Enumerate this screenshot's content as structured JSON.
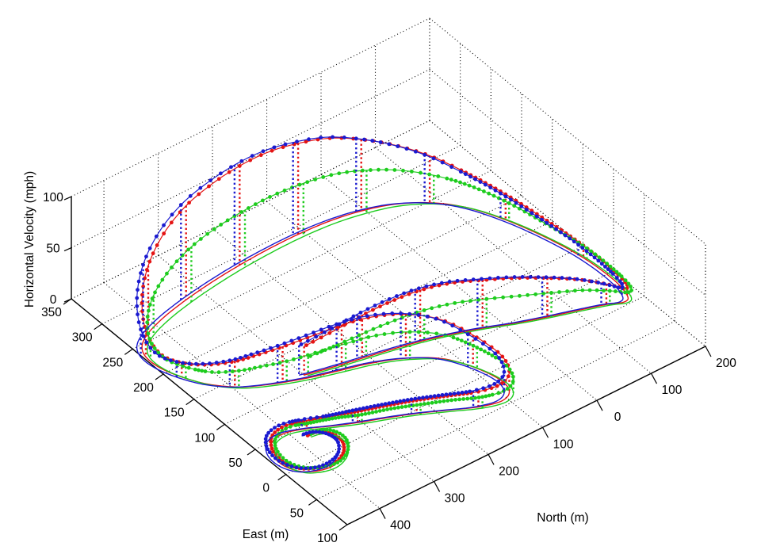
{
  "figure": {
    "kind": "matlab-3d-figure",
    "background": "#ffffff"
  },
  "chart_data": {
    "type": "line",
    "subtype": "3d-trajectory-with-stems",
    "title": "",
    "legend": "none",
    "grid": true,
    "axes": {
      "east": {
        "label": "East (m)",
        "range": [
          -100,
          350
        ],
        "tick_values": [
          350,
          300,
          250,
          200,
          150,
          100,
          50,
          0,
          -50,
          -100
        ],
        "tick_labels": [
          "350",
          "300",
          "250",
          "200",
          "150",
          "100",
          "50",
          "0",
          "50",
          "100"
        ]
      },
      "north": {
        "label": "North (m)",
        "range": [
          -200,
          460
        ],
        "tick_values": [
          400,
          300,
          200,
          100,
          0,
          -100,
          -200
        ],
        "tick_labels": [
          "400",
          "300",
          "200",
          "100",
          "0",
          "100",
          "200"
        ]
      },
      "velocity": {
        "label": "Horizontal Velocity (mph)",
        "range": [
          0,
          100
        ],
        "tick_values": [
          0,
          50,
          100
        ],
        "tick_labels": [
          "0",
          "50",
          "100"
        ]
      }
    },
    "stem_every": 2,
    "series": [
      {
        "name": "run-red",
        "color": "#e41414",
        "points": [
          [
            300,
            112,
            28
          ],
          [
            255,
            104,
            35
          ],
          [
            210,
            97,
            42
          ],
          [
            165,
            90,
            47
          ],
          [
            120,
            82,
            50
          ],
          [
            75,
            72,
            50
          ],
          [
            30,
            60,
            47
          ],
          [
            -15,
            46,
            44
          ],
          [
            -60,
            34,
            38
          ],
          [
            -105,
            23,
            30
          ],
          [
            -145,
            13,
            20
          ],
          [
            -170,
            5,
            13
          ],
          [
            -182,
            12,
            10
          ],
          [
            -188,
            40,
            9
          ],
          [
            -184,
            85,
            12
          ],
          [
            -170,
            132,
            17
          ],
          [
            -148,
            180,
            25
          ],
          [
            -120,
            220,
            34
          ],
          [
            -85,
            248,
            46
          ],
          [
            -42,
            268,
            58
          ],
          [
            5,
            280,
            70
          ],
          [
            55,
            287,
            81
          ],
          [
            110,
            290,
            89
          ],
          [
            165,
            290,
            95
          ],
          [
            220,
            288,
            97
          ],
          [
            275,
            284,
            96
          ],
          [
            330,
            278,
            92
          ],
          [
            380,
            270,
            82
          ],
          [
            420,
            260,
            66
          ],
          [
            445,
            248,
            46
          ],
          [
            456,
            232,
            26
          ],
          [
            455,
            210,
            14
          ],
          [
            443,
            185,
            14
          ],
          [
            423,
            160,
            19
          ],
          [
            396,
            140,
            25
          ],
          [
            370,
            128,
            30
          ],
          [
            335,
            116,
            35
          ],
          [
            295,
            105,
            40
          ],
          [
            250,
            95,
            44
          ],
          [
            205,
            85,
            45
          ],
          [
            160,
            70,
            43
          ],
          [
            120,
            48,
            38
          ],
          [
            95,
            18,
            31
          ],
          [
            82,
            -15,
            25
          ],
          [
            88,
            -35,
            20
          ],
          [
            110,
            -42,
            17
          ],
          [
            145,
            -35,
            15
          ],
          [
            185,
            -20,
            14
          ],
          [
            225,
            -5,
            13
          ],
          [
            265,
            8,
            12
          ],
          [
            305,
            20,
            11
          ],
          [
            340,
            32,
            10
          ],
          [
            372,
            44,
            8
          ],
          [
            405,
            52,
            7
          ],
          [
            432,
            48,
            6
          ],
          [
            448,
            32,
            5
          ],
          [
            450,
            12,
            4
          ],
          [
            438,
            -6,
            3
          ],
          [
            415,
            -16,
            3
          ],
          [
            390,
            -18,
            2
          ],
          [
            365,
            -10,
            2
          ],
          [
            350,
            6,
            1
          ],
          [
            352,
            22,
            1
          ],
          [
            365,
            32,
            1
          ],
          [
            382,
            35,
            0
          ]
        ]
      },
      {
        "name": "run-green",
        "color": "#1ecc1e",
        "points": [
          [
            296,
            109,
            18
          ],
          [
            251,
            101,
            22
          ],
          [
            206,
            94,
            26
          ],
          [
            161,
            87,
            29
          ],
          [
            116,
            79,
            31
          ],
          [
            71,
            69,
            31
          ],
          [
            26,
            57,
            29
          ],
          [
            -19,
            43,
            27
          ],
          [
            -64,
            31,
            24
          ],
          [
            -109,
            20,
            20
          ],
          [
            -148,
            10,
            14
          ],
          [
            -173,
            2,
            10
          ],
          [
            -185,
            9,
            9
          ],
          [
            -191,
            37,
            8
          ],
          [
            -187,
            82,
            10
          ],
          [
            -173,
            129,
            12
          ],
          [
            -151,
            177,
            17
          ],
          [
            -123,
            217,
            22
          ],
          [
            -88,
            244,
            28
          ],
          [
            -45,
            263,
            35
          ],
          [
            2,
            274,
            42
          ],
          [
            52,
            281,
            48
          ],
          [
            107,
            284,
            52
          ],
          [
            162,
            284,
            55
          ],
          [
            217,
            282,
            56
          ],
          [
            272,
            278,
            56
          ],
          [
            327,
            272,
            54
          ],
          [
            377,
            264,
            48
          ],
          [
            417,
            254,
            39
          ],
          [
            442,
            242,
            28
          ],
          [
            453,
            227,
            17
          ],
          [
            452,
            205,
            11
          ],
          [
            440,
            181,
            11
          ],
          [
            420,
            156,
            13
          ],
          [
            393,
            136,
            17
          ],
          [
            367,
            124,
            20
          ],
          [
            332,
            112,
            22
          ],
          [
            292,
            101,
            25
          ],
          [
            247,
            91,
            27
          ],
          [
            202,
            81,
            28
          ],
          [
            157,
            66,
            27
          ],
          [
            117,
            44,
            24
          ],
          [
            92,
            14,
            20
          ],
          [
            79,
            -19,
            17
          ],
          [
            85,
            -39,
            14
          ],
          [
            107,
            -46,
            12
          ],
          [
            142,
            -39,
            11
          ],
          [
            182,
            -24,
            11
          ],
          [
            222,
            -9,
            10
          ],
          [
            262,
            4,
            10
          ],
          [
            302,
            16,
            9
          ],
          [
            337,
            28,
            9
          ],
          [
            369,
            40,
            7
          ],
          [
            402,
            48,
            7
          ],
          [
            429,
            44,
            6
          ],
          [
            445,
            28,
            6
          ],
          [
            447,
            8,
            5
          ],
          [
            435,
            -10,
            5
          ],
          [
            412,
            -20,
            5
          ],
          [
            387,
            -22,
            4
          ],
          [
            362,
            -14,
            4
          ],
          [
            347,
            2,
            4
          ],
          [
            349,
            18,
            4
          ],
          [
            362,
            28,
            4
          ],
          [
            379,
            31,
            3
          ]
        ]
      },
      {
        "name": "run-blue",
        "color": "#1a1ad0",
        "points": [
          [
            306,
            115,
            29
          ],
          [
            261,
            107,
            36
          ],
          [
            216,
            100,
            43
          ],
          [
            171,
            93,
            48
          ],
          [
            126,
            85,
            51
          ],
          [
            81,
            75,
            51
          ],
          [
            36,
            63,
            48
          ],
          [
            -9,
            49,
            45
          ],
          [
            -54,
            37,
            39
          ],
          [
            -99,
            26,
            31
          ],
          [
            -139,
            16,
            21
          ],
          [
            -164,
            8,
            14
          ],
          [
            -176,
            15,
            11
          ],
          [
            -182,
            43,
            10
          ],
          [
            -178,
            88,
            13
          ],
          [
            -164,
            135,
            18
          ],
          [
            -142,
            183,
            26
          ],
          [
            -114,
            223,
            35
          ],
          [
            -79,
            251,
            47
          ],
          [
            -36,
            271,
            59
          ],
          [
            11,
            283,
            71
          ],
          [
            61,
            290,
            82
          ],
          [
            116,
            293,
            90
          ],
          [
            171,
            293,
            96
          ],
          [
            226,
            291,
            98
          ],
          [
            281,
            287,
            97
          ],
          [
            336,
            281,
            93
          ],
          [
            386,
            273,
            83
          ],
          [
            426,
            263,
            67
          ],
          [
            451,
            251,
            47
          ],
          [
            462,
            235,
            27
          ],
          [
            461,
            213,
            15
          ],
          [
            449,
            188,
            15
          ],
          [
            429,
            163,
            20
          ],
          [
            402,
            143,
            26
          ],
          [
            376,
            131,
            31
          ],
          [
            341,
            119,
            36
          ],
          [
            301,
            108,
            41
          ],
          [
            256,
            98,
            45
          ],
          [
            211,
            88,
            46
          ],
          [
            166,
            73,
            44
          ],
          [
            126,
            51,
            39
          ],
          [
            101,
            21,
            32
          ],
          [
            88,
            -12,
            26
          ],
          [
            94,
            -32,
            21
          ],
          [
            116,
            -39,
            18
          ],
          [
            151,
            -32,
            16
          ],
          [
            191,
            -17,
            15
          ],
          [
            231,
            -2,
            14
          ],
          [
            271,
            11,
            13
          ],
          [
            311,
            23,
            12
          ],
          [
            346,
            35,
            10
          ],
          [
            378,
            47,
            9
          ],
          [
            411,
            55,
            8
          ],
          [
            438,
            51,
            7
          ],
          [
            454,
            35,
            6
          ],
          [
            456,
            15,
            5
          ],
          [
            444,
            -3,
            4
          ],
          [
            421,
            -13,
            3
          ],
          [
            396,
            -15,
            3
          ],
          [
            371,
            -7,
            2
          ],
          [
            356,
            9,
            2
          ],
          [
            358,
            25,
            1
          ],
          [
            371,
            35,
            1
          ],
          [
            388,
            38,
            1
          ]
        ]
      }
    ]
  }
}
